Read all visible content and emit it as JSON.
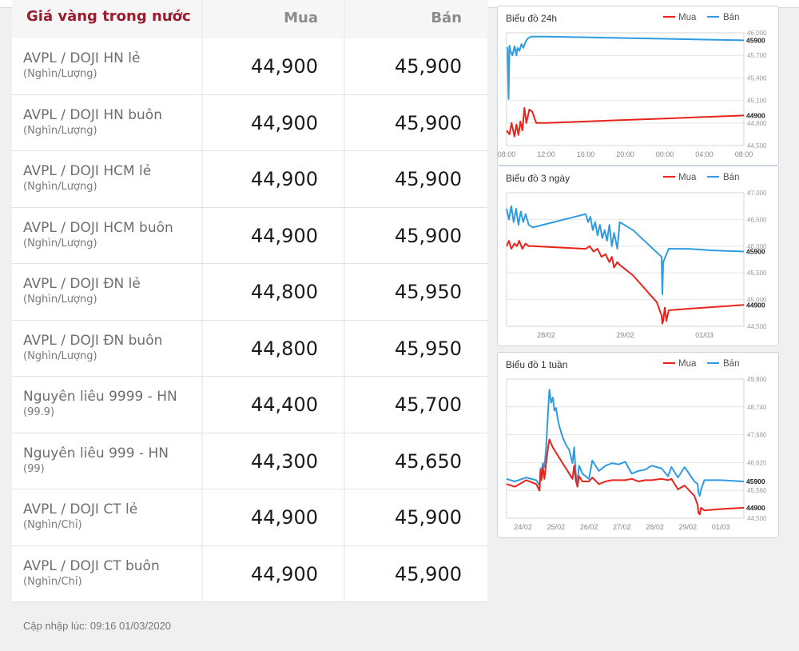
{
  "table": {
    "header": {
      "title": "Giá vàng trong nước",
      "buy": "Mua",
      "sell": "Bán"
    },
    "rows": [
      {
        "name": "AVPL / DOJI HN lẻ",
        "unit": "(Nghìn/Lượng)",
        "buy": "44,900",
        "sell": "45,900"
      },
      {
        "name": "AVPL / DOJI HN buôn",
        "unit": "(Nghìn/Lượng)",
        "buy": "44,900",
        "sell": "45,900"
      },
      {
        "name": "AVPL / DOJI HCM lẻ",
        "unit": "(Nghìn/Lượng)",
        "buy": "44,900",
        "sell": "45,900"
      },
      {
        "name": "AVPL / DOJI HCM buôn",
        "unit": "(Nghìn/Lượng)",
        "buy": "44,900",
        "sell": "45,900"
      },
      {
        "name": "AVPL / DOJI ĐN lẻ",
        "unit": "(Nghìn/Lượng)",
        "buy": "44,800",
        "sell": "45,950"
      },
      {
        "name": "AVPL / DOJI ĐN buôn",
        "unit": "(Nghìn/Lượng)",
        "buy": "44,800",
        "sell": "45,950"
      },
      {
        "name": "Nguyên liêu 9999 - HN",
        "unit": "(99.9)",
        "buy": "44,400",
        "sell": "45,700"
      },
      {
        "name": "Nguyên liêu 999 - HN",
        "unit": "(99)",
        "buy": "44,300",
        "sell": "45,650"
      },
      {
        "name": "AVPL / DOJI CT lẻ",
        "unit": "(Nghìn/Chỉ)",
        "buy": "44,900",
        "sell": "45,900"
      },
      {
        "name": "AVPL / DOJI CT buôn",
        "unit": "(Nghìn/Chỉ)",
        "buy": "44,900",
        "sell": "45,900"
      }
    ]
  },
  "updated": "Cập nhập lúc: 09:16 01/03/2020",
  "colors": {
    "buy": "#e8231c",
    "sell": "#2f9be0",
    "title": "#9b1c2c"
  },
  "chart_data": [
    {
      "type": "line",
      "title": "Biểu đồ 24h",
      "legend": [
        "Mua",
        "Bán"
      ],
      "legend_position": "top-right",
      "ylim": [
        44500,
        46000
      ],
      "yticks": [
        "46,000",
        "45,700",
        "45,400",
        "45,100",
        "44,800",
        "44,500"
      ],
      "xtick_labels": [
        "08:00",
        "12:00",
        "16:00",
        "20:00",
        "00:00",
        "04:00",
        "08:00"
      ],
      "x_range": [
        0,
        24
      ],
      "series": [
        {
          "name": "Bán",
          "x": [
            0,
            0.1,
            0.2,
            0.3,
            0.4,
            0.6,
            0.8,
            1.0,
            1.1,
            1.3,
            1.5,
            1.7,
            1.9,
            2.0,
            2.2,
            2.5,
            3.0,
            4.0,
            8.0,
            12.0,
            16.0,
            20.0,
            24.0
          ],
          "y": [
            45800,
            45800,
            45120,
            45830,
            45760,
            45700,
            45820,
            45700,
            45800,
            45760,
            45850,
            45800,
            45870,
            45900,
            45930,
            45950,
            45950,
            45950,
            45940,
            45930,
            45920,
            45910,
            45900
          ]
        },
        {
          "name": "Mua",
          "x": [
            0,
            0.3,
            0.5,
            0.8,
            1.0,
            1.2,
            1.4,
            1.6,
            1.8,
            2.0,
            2.3,
            2.6,
            3.0,
            4.0,
            8.0,
            12.0,
            16.0,
            20.0,
            24.0
          ],
          "y": [
            44700,
            44650,
            44800,
            44620,
            44780,
            44640,
            44820,
            44700,
            45000,
            44800,
            44980,
            44950,
            44800,
            44800,
            44820,
            44840,
            44860,
            44880,
            44900
          ]
        }
      ],
      "last_labels": {
        "Bán": "45900",
        "Mua": "44900"
      }
    },
    {
      "type": "line",
      "title": "Biểu đồ 3 ngày",
      "legend": [
        "Mua",
        "Bán"
      ],
      "legend_position": "top-right",
      "ylim": [
        44500,
        47000
      ],
      "yticks": [
        "47,000",
        "46,500",
        "46,000",
        "45,500",
        "45,000",
        "44,500"
      ],
      "xtick_labels": [
        "28/02",
        "29/02",
        "01/03"
      ],
      "xtick_pos": [
        0.5,
        1.5,
        2.5
      ],
      "x_range": [
        0,
        3
      ],
      "series": [
        {
          "name": "Bán",
          "x": [
            0,
            0.03,
            0.06,
            0.09,
            0.12,
            0.15,
            0.18,
            0.21,
            0.24,
            0.28,
            0.33,
            1.0,
            1.03,
            1.06,
            1.09,
            1.12,
            1.15,
            1.18,
            1.21,
            1.24,
            1.27,
            1.3,
            1.33,
            1.36,
            1.4,
            1.43,
            1.6,
            1.96,
            1.97,
            1.98,
            2.05,
            2.3,
            2.6,
            3.0
          ],
          "y": [
            46700,
            46500,
            46750,
            46450,
            46700,
            46400,
            46650,
            46450,
            46600,
            46400,
            46350,
            46600,
            46450,
            46550,
            46300,
            46450,
            46200,
            46400,
            46150,
            46300,
            46100,
            46400,
            46000,
            46250,
            45950,
            46450,
            46300,
            45800,
            45100,
            45700,
            45950,
            45950,
            45920,
            45900
          ]
        },
        {
          "name": "Mua",
          "x": [
            0,
            0.03,
            0.06,
            0.1,
            0.13,
            0.16,
            0.2,
            0.24,
            0.28,
            0.33,
            1.0,
            1.05,
            1.1,
            1.15,
            1.2,
            1.25,
            1.3,
            1.33,
            1.36,
            1.4,
            1.43,
            1.6,
            1.9,
            1.96,
            1.97,
            1.98,
            2.0,
            2.02,
            2.05,
            2.3,
            2.6,
            3.0
          ],
          "y": [
            46000,
            46100,
            45950,
            46050,
            46000,
            46100,
            45950,
            46050,
            46000,
            46000,
            45950,
            46000,
            45900,
            45950,
            45800,
            45850,
            45700,
            45800,
            45600,
            45700,
            45650,
            45450,
            44950,
            44700,
            44550,
            44600,
            44850,
            44600,
            44800,
            44830,
            44860,
            44900
          ]
        }
      ],
      "last_labels": {
        "Bán": "45900",
        "Mua": "44900"
      }
    },
    {
      "type": "line",
      "title": "Biểu đồ 1 tuần",
      "legend": [
        "Mua",
        "Bán"
      ],
      "legend_position": "top-right",
      "ylim": [
        44500,
        49800
      ],
      "yticks": [
        "49,800",
        "48,740",
        "47,680",
        "46,620",
        "45,560",
        "44,500"
      ],
      "xtick_labels": [
        "24/02",
        "25/02",
        "26/02",
        "27/02",
        "28/02",
        "29/02",
        "01/03"
      ],
      "xtick_pos": [
        0.5,
        1.5,
        2.5,
        3.5,
        4.5,
        5.5,
        6.5
      ],
      "x_range": [
        0,
        7.2
      ],
      "series": [
        {
          "name": "Bán",
          "x": [
            0,
            0.25,
            0.6,
            0.9,
            1.0,
            1.03,
            1.06,
            1.1,
            1.15,
            1.2,
            1.26,
            1.3,
            1.35,
            1.4,
            1.45,
            1.5,
            1.55,
            1.6,
            1.7,
            1.8,
            1.9,
            2.0,
            2.05,
            2.1,
            2.15,
            2.2,
            2.3,
            2.5,
            2.6,
            2.8,
            3.0,
            3.2,
            3.4,
            3.6,
            3.8,
            4.0,
            4.2,
            4.4,
            4.7,
            4.9,
            5.0,
            5.2,
            5.4,
            5.7,
            5.8,
            5.82,
            5.86,
            5.9,
            6.0,
            6.5,
            7.2
          ],
          "y": [
            46000,
            45900,
            46050,
            45950,
            45750,
            46400,
            46200,
            46600,
            46450,
            47200,
            48600,
            49400,
            48900,
            49100,
            48600,
            48700,
            48300,
            48000,
            47600,
            47300,
            47100,
            46600,
            47200,
            46200,
            45900,
            46500,
            46200,
            46000,
            46700,
            46300,
            46500,
            46600,
            46550,
            46650,
            46200,
            46300,
            46350,
            46500,
            46400,
            46100,
            46450,
            46050,
            46450,
            45900,
            45800,
            45500,
            45350,
            45600,
            45950,
            45950,
            45900
          ]
        },
        {
          "name": "Mua",
          "x": [
            0,
            0.25,
            0.6,
            0.9,
            1.0,
            1.03,
            1.06,
            1.1,
            1.15,
            1.2,
            1.26,
            1.3,
            1.4,
            1.5,
            1.6,
            1.7,
            1.8,
            1.9,
            2.0,
            2.05,
            2.1,
            2.15,
            2.2,
            2.3,
            2.5,
            2.6,
            2.8,
            3.0,
            3.2,
            3.4,
            3.6,
            3.8,
            4.0,
            4.2,
            4.4,
            4.7,
            4.9,
            5.0,
            5.2,
            5.4,
            5.7,
            5.8,
            5.82,
            5.86,
            5.9,
            6.0,
            6.5,
            7.2
          ],
          "y": [
            45800,
            45700,
            45950,
            45800,
            45550,
            46300,
            45950,
            46450,
            46000,
            46600,
            47200,
            47500,
            47200,
            47000,
            46800,
            46600,
            46400,
            46200,
            46000,
            46500,
            45950,
            45700,
            46100,
            45900,
            45900,
            46050,
            45800,
            45900,
            45950,
            45950,
            45950,
            46000,
            45900,
            45950,
            45950,
            46000,
            45950,
            46000,
            45600,
            45750,
            45350,
            45000,
            44700,
            44650,
            44900,
            44800,
            44850,
            44900
          ]
        }
      ],
      "last_labels": {
        "Bán": "45900",
        "Mua": "44900"
      }
    }
  ]
}
